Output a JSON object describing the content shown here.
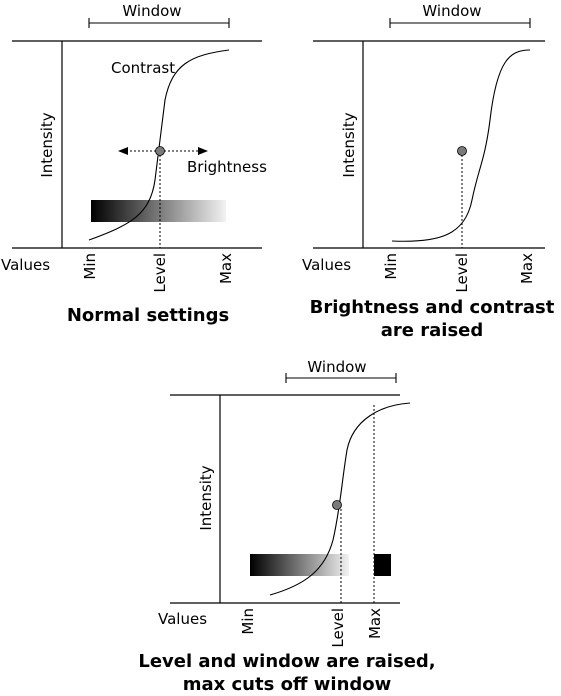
{
  "colors": {
    "line": "#000000",
    "dot": "#7a7a7a",
    "gradient_dark": "#000000",
    "gradient_light": "#f2f2f2"
  },
  "panel_normal": {
    "window_label": "Window",
    "intensity_label": "Intensity",
    "values_label": "Values",
    "min_label": "Min",
    "level_label": "Level",
    "max_label": "Max",
    "contrast_label": "Contrast",
    "brightness_label": "Brightness",
    "caption": "Normal settings"
  },
  "panel_raised": {
    "window_label": "Window",
    "intensity_label": "Intensity",
    "values_label": "Values",
    "min_label": "Min",
    "level_label": "Level",
    "max_label": "Max",
    "caption_line1": "Brightness and contrast",
    "caption_line2": "are raised"
  },
  "panel_cutoff": {
    "window_label": "Window",
    "intensity_label": "Intensity",
    "values_label": "Values",
    "min_label": "Min",
    "level_label": "Level",
    "max_label": "Max",
    "caption_line1": "Level and window are raised,",
    "caption_line2": "max cuts off window"
  }
}
